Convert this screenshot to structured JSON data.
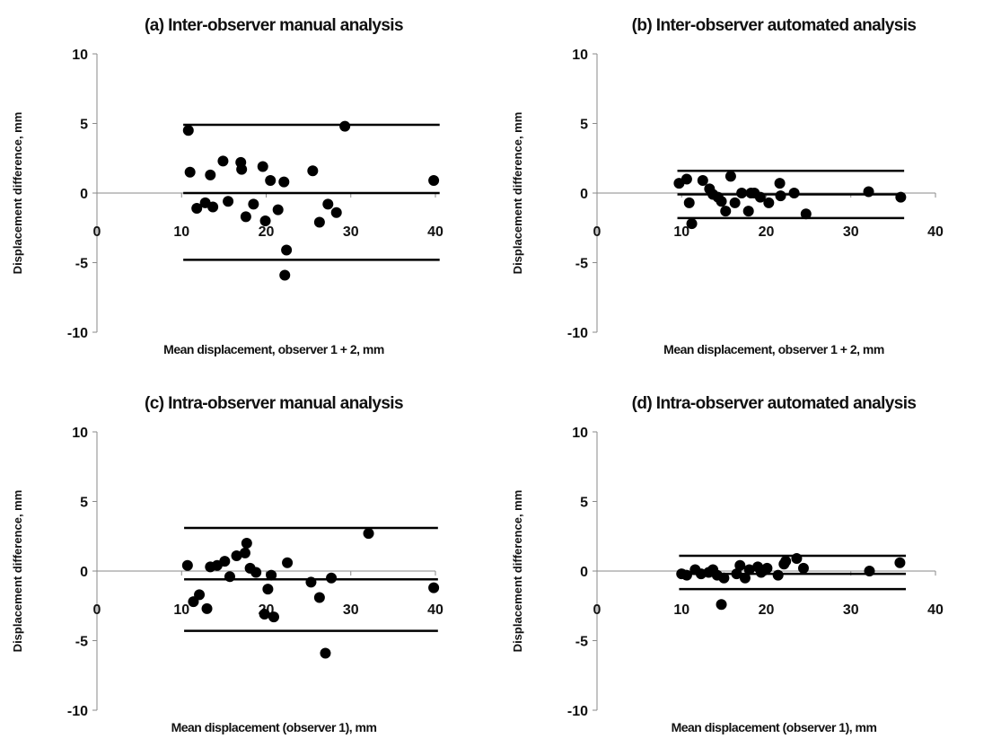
{
  "chart_data": [
    {
      "type": "scatter",
      "title": "(a) Inter-observer manual analysis",
      "xlabel": "Mean displacement, observer 1 + 2, mm",
      "ylabel": "Displacement difference, mm",
      "xlim": [
        0,
        40
      ],
      "ylim": [
        -10,
        10
      ],
      "xticks": [
        "0",
        "10",
        "20",
        "30",
        "40"
      ],
      "yticks": [
        "10",
        "5",
        "0",
        "-5",
        "-10"
      ],
      "grid": false,
      "reference_lines": [
        {
          "y": 4.9,
          "x_range": [
            10.2,
            40.5
          ]
        },
        {
          "y": 0.0,
          "x_range": [
            10.2,
            40.5
          ]
        },
        {
          "y": -4.8,
          "x_range": [
            10.2,
            40.5
          ]
        }
      ],
      "points": [
        {
          "x": 10.8,
          "y": 4.5
        },
        {
          "x": 29.3,
          "y": 4.8
        },
        {
          "x": 39.8,
          "y": 0.9
        },
        {
          "x": 11.0,
          "y": 1.5
        },
        {
          "x": 11.8,
          "y": -1.1
        },
        {
          "x": 12.8,
          "y": -0.7
        },
        {
          "x": 13.4,
          "y": 1.3
        },
        {
          "x": 13.7,
          "y": -1.0
        },
        {
          "x": 14.9,
          "y": 2.3
        },
        {
          "x": 15.5,
          "y": -0.6
        },
        {
          "x": 17.0,
          "y": 2.2
        },
        {
          "x": 17.1,
          "y": 1.7
        },
        {
          "x": 17.6,
          "y": -1.7
        },
        {
          "x": 18.5,
          "y": -0.8
        },
        {
          "x": 19.6,
          "y": 1.9
        },
        {
          "x": 19.9,
          "y": -2.0
        },
        {
          "x": 20.5,
          "y": 0.9
        },
        {
          "x": 21.4,
          "y": -1.2
        },
        {
          "x": 22.1,
          "y": 0.8
        },
        {
          "x": 22.4,
          "y": -4.1
        },
        {
          "x": 22.2,
          "y": -5.9
        },
        {
          "x": 25.5,
          "y": 1.6
        },
        {
          "x": 26.3,
          "y": -2.1
        },
        {
          "x": 27.3,
          "y": -0.8
        },
        {
          "x": 28.3,
          "y": -1.4
        }
      ]
    },
    {
      "type": "scatter",
      "title": "(b) Inter-observer automated analysis",
      "xlabel": "Mean displacement, observer 1 + 2, mm",
      "ylabel": "Displacement difference, mm",
      "xlim": [
        0,
        40
      ],
      "ylim": [
        -10,
        10
      ],
      "xticks": [
        "0",
        "10",
        "20",
        "30",
        "40"
      ],
      "yticks": [
        "10",
        "5",
        "0",
        "-5",
        "-10"
      ],
      "grid": false,
      "reference_lines": [
        {
          "y": 1.6,
          "x_range": [
            9.5,
            36.3
          ]
        },
        {
          "y": -0.1,
          "x_range": [
            9.5,
            36.3
          ]
        },
        {
          "y": -1.8,
          "x_range": [
            9.5,
            36.3
          ]
        }
      ],
      "points": [
        {
          "x": 9.7,
          "y": 0.7
        },
        {
          "x": 10.6,
          "y": 1.0
        },
        {
          "x": 10.9,
          "y": -0.7
        },
        {
          "x": 11.2,
          "y": -2.2
        },
        {
          "x": 12.5,
          "y": 0.9
        },
        {
          "x": 13.3,
          "y": 0.3
        },
        {
          "x": 13.7,
          "y": -0.1
        },
        {
          "x": 14.3,
          "y": -0.3
        },
        {
          "x": 14.7,
          "y": -0.6
        },
        {
          "x": 15.2,
          "y": -1.3
        },
        {
          "x": 15.8,
          "y": 1.2
        },
        {
          "x": 16.3,
          "y": -0.7
        },
        {
          "x": 17.1,
          "y": 0.0
        },
        {
          "x": 17.9,
          "y": -1.3
        },
        {
          "x": 18.2,
          "y": 0.0
        },
        {
          "x": 18.6,
          "y": 0.0
        },
        {
          "x": 19.3,
          "y": -0.3
        },
        {
          "x": 20.3,
          "y": -0.7
        },
        {
          "x": 21.6,
          "y": 0.7
        },
        {
          "x": 21.7,
          "y": -0.2
        },
        {
          "x": 23.3,
          "y": 0.0
        },
        {
          "x": 24.7,
          "y": -1.5
        },
        {
          "x": 32.1,
          "y": 0.1
        },
        {
          "x": 35.9,
          "y": -0.3
        }
      ]
    },
    {
      "type": "scatter",
      "title": "(c) Intra-observer manual analysis",
      "xlabel": "Mean displacement (observer 1), mm",
      "ylabel": "Displacement difference, mm",
      "xlim": [
        0,
        40
      ],
      "ylim": [
        -10,
        10
      ],
      "xticks": [
        "0",
        "10",
        "20",
        "30",
        "40"
      ],
      "yticks": [
        "10",
        "5",
        "0",
        "-5",
        "-10"
      ],
      "grid": false,
      "reference_lines": [
        {
          "y": 3.1,
          "x_range": [
            10.3,
            40.3
          ]
        },
        {
          "y": -0.6,
          "x_range": [
            10.3,
            40.3
          ]
        },
        {
          "y": -4.3,
          "x_range": [
            10.3,
            40.3
          ]
        }
      ],
      "points": [
        {
          "x": 10.7,
          "y": 0.4
        },
        {
          "x": 11.4,
          "y": -2.2
        },
        {
          "x": 12.1,
          "y": -1.7
        },
        {
          "x": 13.0,
          "y": -2.7
        },
        {
          "x": 13.4,
          "y": 0.3
        },
        {
          "x": 14.2,
          "y": 0.4
        },
        {
          "x": 15.1,
          "y": 0.7
        },
        {
          "x": 15.7,
          "y": -0.4
        },
        {
          "x": 16.5,
          "y": 1.1
        },
        {
          "x": 17.5,
          "y": 1.3
        },
        {
          "x": 17.7,
          "y": 2.0
        },
        {
          "x": 18.1,
          "y": 0.2
        },
        {
          "x": 18.8,
          "y": -0.1
        },
        {
          "x": 19.8,
          "y": -3.1
        },
        {
          "x": 20.2,
          "y": -1.3
        },
        {
          "x": 20.6,
          "y": -0.3
        },
        {
          "x": 20.9,
          "y": -3.3
        },
        {
          "x": 22.5,
          "y": 0.6
        },
        {
          "x": 25.3,
          "y": -0.8
        },
        {
          "x": 26.3,
          "y": -1.9
        },
        {
          "x": 27.0,
          "y": -5.9
        },
        {
          "x": 27.7,
          "y": -0.5
        },
        {
          "x": 32.1,
          "y": 2.7
        },
        {
          "x": 39.8,
          "y": -1.2
        }
      ]
    },
    {
      "type": "scatter",
      "title": "(d) Intra-observer automated analysis",
      "xlabel": "Mean displacement (observer 1), mm",
      "ylabel": "Displacement difference, mm",
      "xlim": [
        0,
        40
      ],
      "ylim": [
        -10,
        10
      ],
      "xticks": [
        "0",
        "10",
        "20",
        "30",
        "40"
      ],
      "yticks": [
        "10",
        "5",
        "0",
        "-5",
        "-10"
      ],
      "grid": false,
      "reference_lines": [
        {
          "y": 1.1,
          "x_range": [
            9.7,
            36.5
          ]
        },
        {
          "y": -0.2,
          "x_range": [
            9.7,
            36.5
          ]
        },
        {
          "y": -1.3,
          "x_range": [
            9.7,
            36.5
          ]
        }
      ],
      "points": [
        {
          "x": 10.0,
          "y": -0.2
        },
        {
          "x": 10.6,
          "y": -0.3
        },
        {
          "x": 11.6,
          "y": 0.1
        },
        {
          "x": 12.3,
          "y": -0.2
        },
        {
          "x": 13.2,
          "y": -0.1
        },
        {
          "x": 13.7,
          "y": 0.1
        },
        {
          "x": 14.2,
          "y": -0.3
        },
        {
          "x": 14.7,
          "y": -2.4
        },
        {
          "x": 15.0,
          "y": -0.5
        },
        {
          "x": 16.5,
          "y": -0.2
        },
        {
          "x": 16.9,
          "y": 0.4
        },
        {
          "x": 17.5,
          "y": -0.5
        },
        {
          "x": 18.0,
          "y": 0.1
        },
        {
          "x": 19.0,
          "y": 0.3
        },
        {
          "x": 19.4,
          "y": -0.1
        },
        {
          "x": 20.1,
          "y": 0.2
        },
        {
          "x": 21.4,
          "y": -0.3
        },
        {
          "x": 22.3,
          "y": 0.7
        },
        {
          "x": 22.1,
          "y": 0.5
        },
        {
          "x": 23.6,
          "y": 0.9
        },
        {
          "x": 24.4,
          "y": 0.2
        },
        {
          "x": 32.2,
          "y": 0.0
        },
        {
          "x": 35.8,
          "y": 0.6
        }
      ]
    }
  ]
}
